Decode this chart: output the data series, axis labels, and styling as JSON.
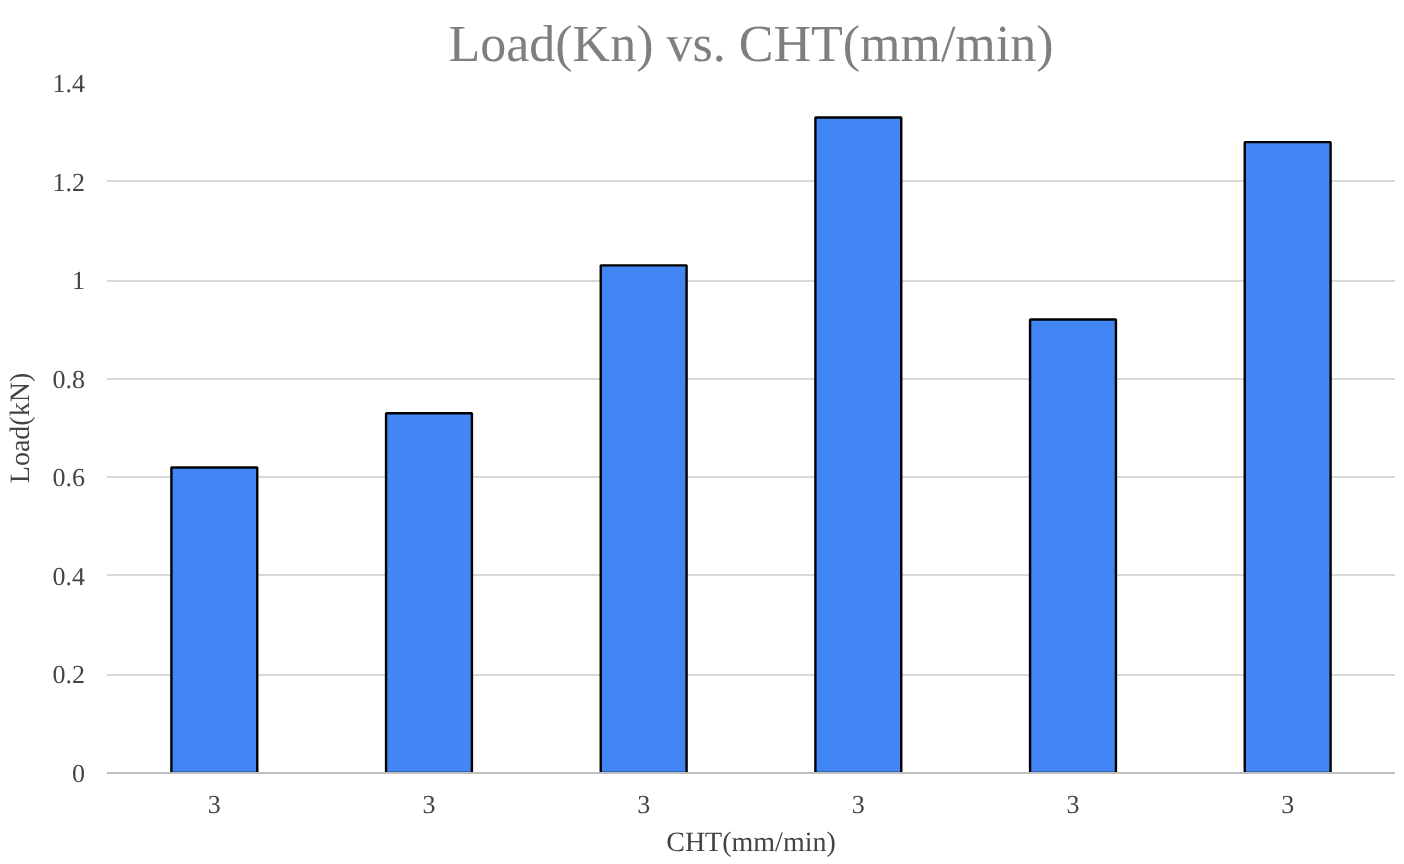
{
  "chart_data": {
    "type": "bar",
    "title": "Load(Kn) vs. CHT(mm/min)",
    "xlabel": "CHT(mm/min)",
    "ylabel": "Load(kN)",
    "categories": [
      "3",
      "3",
      "3",
      "3",
      "3",
      "3"
    ],
    "values": [
      0.62,
      0.73,
      1.03,
      1.33,
      0.92,
      1.28
    ],
    "color": "#4285f4",
    "ylim": [
      0,
      1.4
    ],
    "yticks": [
      0,
      0.2,
      0.4,
      0.6,
      0.8,
      1,
      1.2,
      1.4
    ],
    "grid": "y"
  }
}
